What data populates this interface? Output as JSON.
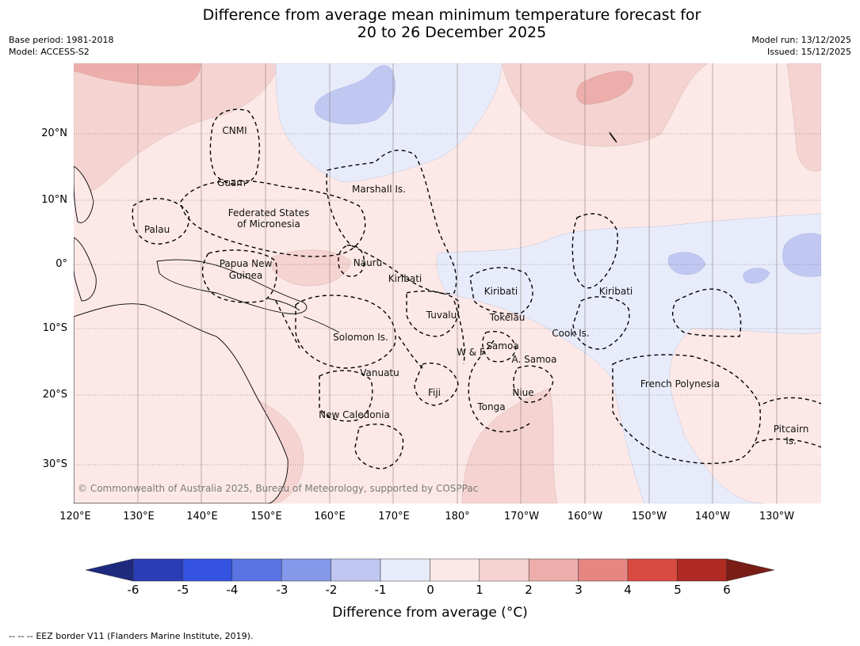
{
  "header": {
    "title_line1": "Difference from average mean minimum temperature forecast for",
    "title_line2": "20 to 26 December 2025",
    "base_period": "Base period: 1981-2018",
    "model": "Model: ACCESS-S2",
    "model_run": "Model run: 13/12/2025",
    "issued": "Issued: 15/12/2025"
  },
  "map": {
    "lat_labels": [
      "20°N",
      "10°N",
      "0°",
      "10°S",
      "20°S",
      "30°S"
    ],
    "lon_labels": [
      "120°E",
      "130°E",
      "140°E",
      "150°E",
      "160°E",
      "170°E",
      "180°",
      "170°W",
      "160°W",
      "150°W",
      "140°W",
      "130°W"
    ],
    "region_labels": [
      "CNMI",
      "Guam",
      "Marshall Is.",
      "Federated States",
      "of Micronesia",
      "Palau",
      "Papua New",
      "Guinea",
      "Nauru",
      "Kiribati",
      "Kiribati",
      "Kiribati",
      "Tuvalu",
      "Tokelau",
      "Cook Is.",
      "Solomon Is.",
      "W & F",
      "Samoa",
      "A. Samoa",
      "Vanuatu",
      "Fiji",
      "Niue",
      "Tonga",
      "French Polynesia",
      "New Caledonia",
      "Pitcairn",
      "Is."
    ],
    "copyright": "© Commonwealth of Australia 2025, Bureau of Meteorology, supported by COSPPac",
    "colors": {
      "ocean_base": "#fce9e7",
      "warm_1_2": "#f5d3d0",
      "warm_2_3": "#edaeab",
      "cool_0_-1": "#e8ecfa",
      "cool_-1_-2": "#c0c8f2"
    }
  },
  "colorbar": {
    "ticks": [
      "-6",
      "-5",
      "-4",
      "-3",
      "-2",
      "-1",
      "0",
      "1",
      "2",
      "3",
      "4",
      "5",
      "6"
    ],
    "colors": [
      "#1e2a7e",
      "#2a3db4",
      "#3353e0",
      "#5a74e3",
      "#8598ea",
      "#bfc7f1",
      "#e8ebfa",
      "#fce9e7",
      "#f5d3d0",
      "#edaeab",
      "#e68683",
      "#d94a40",
      "#ae2a22",
      "#7a1d17"
    ],
    "label": "Difference from average (",
    "label_unit": "°C)"
  },
  "footer": {
    "legend_symbol": "--  --  --",
    "legend_text": "EEZ border V11 (Flanders Marine Institute, 2019)."
  }
}
